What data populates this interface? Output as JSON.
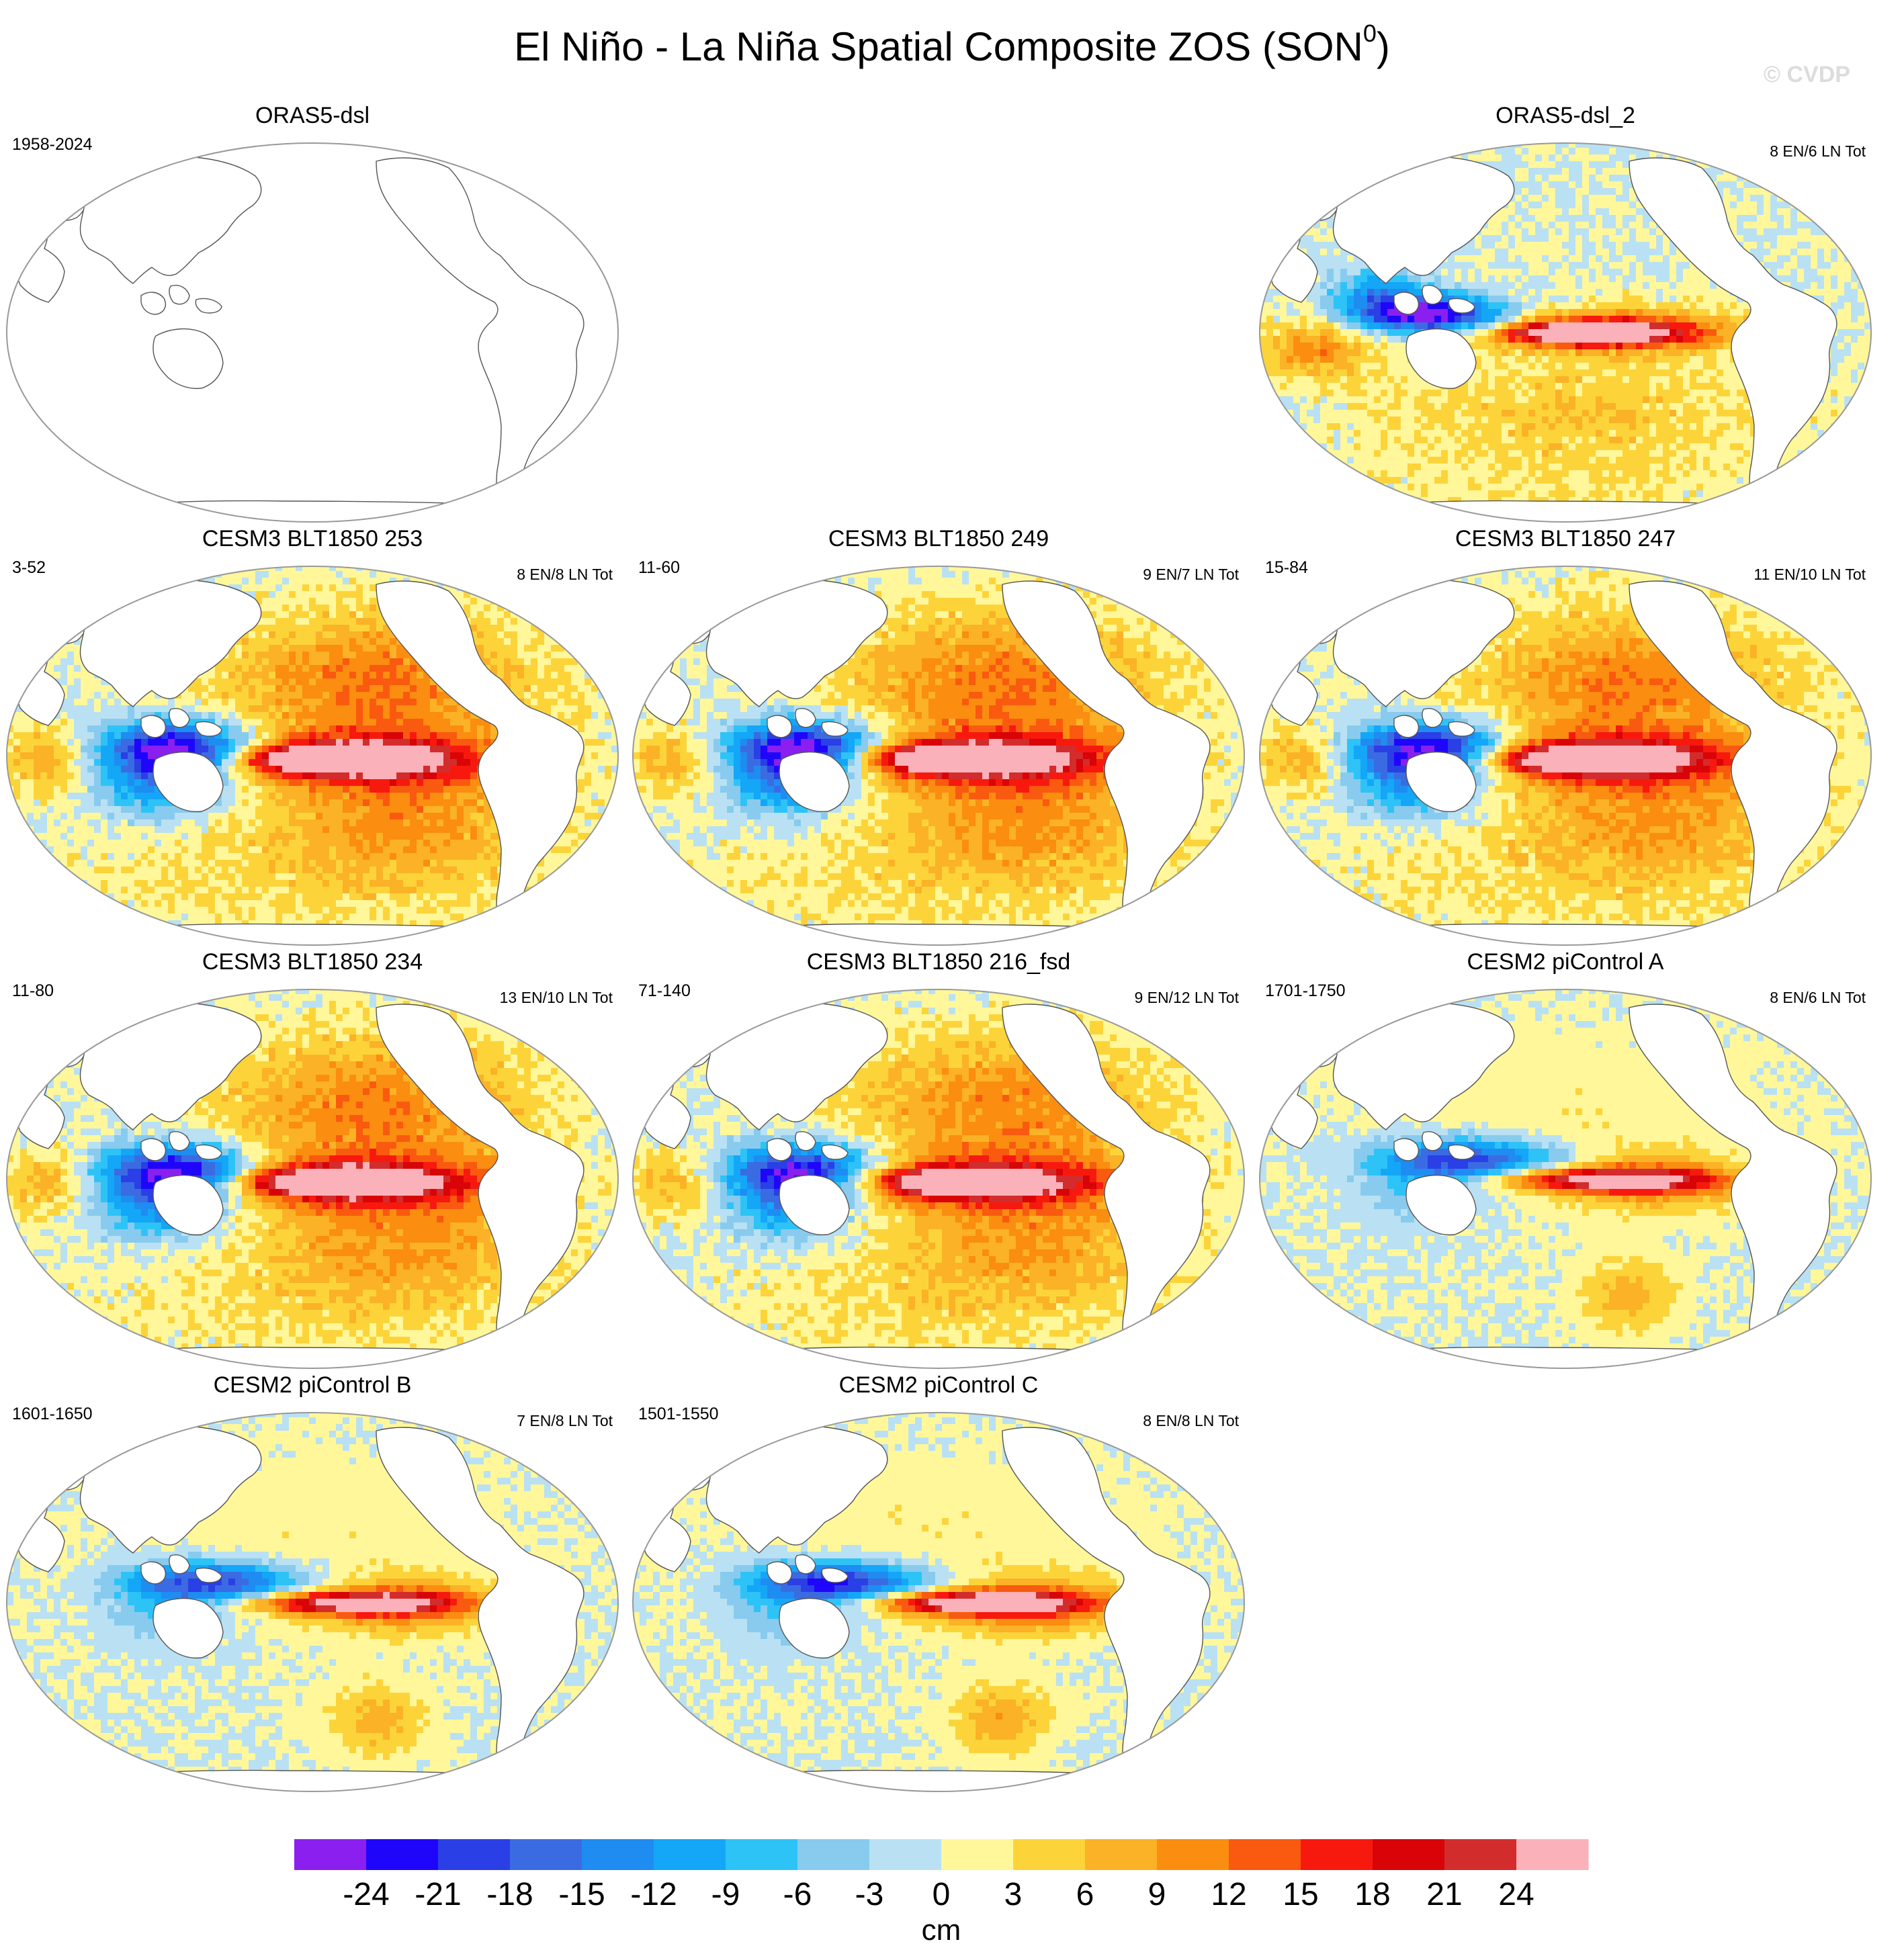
{
  "figure": {
    "title": "El Niño - La Niña Spatial Composite ZOS (SON",
    "title_superscript": "0",
    "title_suffix": ")",
    "watermark": "© CVDP",
    "units": "cm"
  },
  "chart_data": {
    "type": "heatmap",
    "variable": "ZOS",
    "season": "SON0",
    "projection": "Robinson (Pacific-centered)",
    "colorbar": {
      "ticks": [
        "-24",
        "-21",
        "-18",
        "-15",
        "-12",
        "-9",
        "-6",
        "-3",
        "0",
        "3",
        "6",
        "9",
        "12",
        "15",
        "18",
        "21",
        "24"
      ],
      "colors": [
        "#8a1ff0",
        "#1f06fb",
        "#2a3fe5",
        "#3b6be2",
        "#1f8cf2",
        "#14a6f7",
        "#2ec3f7",
        "#88cbee",
        "#b9e1f3",
        "#fff79a",
        "#fcd43a",
        "#fbb226",
        "#fb8d10",
        "#f95a0f",
        "#f8190e",
        "#d80407",
        "#d32c2c",
        "#fbb1b9"
      ],
      "label": "cm"
    },
    "panels": [
      {
        "title": "ORAS5-dsl",
        "years": "1958-2024",
        "count": "",
        "pattern": "none"
      },
      {
        "title": "ORAS5-dsl_2",
        "years": "",
        "count": "8 EN/6 LN Tot",
        "pattern": "obs"
      },
      {
        "title": "CESM3 BLT1850 253",
        "years": "3-52",
        "count": "8 EN/8 LN Tot",
        "pattern": "cesm3",
        "strength": 1.0
      },
      {
        "title": "CESM3 BLT1850 249",
        "years": "11-60",
        "count": "9 EN/7 LN Tot",
        "pattern": "cesm3",
        "strength": 1.0
      },
      {
        "title": "CESM3 BLT1850 247",
        "years": "15-84",
        "count": "11 EN/10 LN Tot",
        "pattern": "cesm3",
        "strength": 0.95
      },
      {
        "title": "CESM3 BLT1850 234",
        "years": "11-80",
        "count": "13 EN/10 LN Tot",
        "pattern": "cesm3",
        "strength": 0.95
      },
      {
        "title": "CESM3 BLT1850 216_fsd",
        "years": "71-140",
        "count": "9 EN/12 LN Tot",
        "pattern": "cesm3",
        "strength": 0.9
      },
      {
        "title": "CESM2 piControl A",
        "years": "1701-1750",
        "count": "8 EN/6 LN Tot",
        "pattern": "cesm2",
        "strength": 0.85
      },
      {
        "title": "CESM2 piControl B",
        "years": "1601-1650",
        "count": "7 EN/8 LN Tot",
        "pattern": "cesm2",
        "strength": 0.85
      },
      {
        "title": "CESM2 piControl C",
        "years": "1501-1550",
        "count": "8 EN/8 LN Tot",
        "pattern": "cesm2",
        "strength": 0.95
      }
    ]
  }
}
